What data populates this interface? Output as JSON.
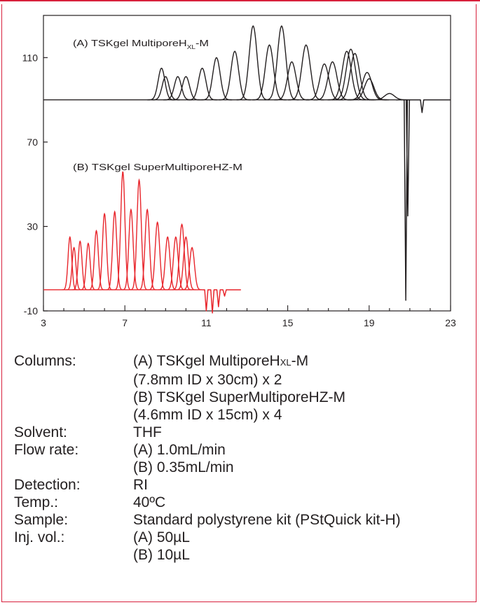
{
  "colors": {
    "frame": "#d8203c",
    "series_a": "#231f20",
    "series_b": "#e8262c",
    "text": "#231f20"
  },
  "chart_data": {
    "type": "line",
    "xlim": [
      3,
      23
    ],
    "ylim": [
      -10,
      130
    ],
    "x_ticks": [
      "3",
      "7",
      "11",
      "15",
      "19",
      "23"
    ],
    "y_ticks": [
      "110",
      "70",
      "30",
      "-10"
    ],
    "grid": false,
    "series": [
      {
        "name": "(A) TSKgel MultiporeHXL-M",
        "name_main": "(A) TSKgel MultiporeH",
        "name_sub": "XL",
        "name_tail": "-M",
        "color": "#231f20",
        "baseline": 90,
        "peaks": [
          {
            "x": 8.8,
            "y": 105
          },
          {
            "x": 9.0,
            "y": 101
          },
          {
            "x": 9.6,
            "y": 101
          },
          {
            "x": 10.0,
            "y": 101
          },
          {
            "x": 10.8,
            "y": 105
          },
          {
            "x": 11.5,
            "y": 110
          },
          {
            "x": 12.4,
            "y": 113
          },
          {
            "x": 13.3,
            "y": 125
          },
          {
            "x": 14.1,
            "y": 116
          },
          {
            "x": 14.7,
            "y": 125
          },
          {
            "x": 15.2,
            "y": 108
          },
          {
            "x": 15.9,
            "y": 116
          },
          {
            "x": 16.8,
            "y": 107
          },
          {
            "x": 17.2,
            "y": 108
          },
          {
            "x": 17.9,
            "y": 113
          },
          {
            "x": 18.1,
            "y": 114
          },
          {
            "x": 18.3,
            "y": 112
          },
          {
            "x": 18.9,
            "y": 103
          },
          {
            "x": 19.0,
            "y": 100
          },
          {
            "x": 20.0,
            "y": 93
          }
        ],
        "dips": [
          {
            "x": 20.8,
            "y": -5
          },
          {
            "x": 20.9,
            "y": 35
          },
          {
            "x": 21.6,
            "y": 84
          }
        ]
      },
      {
        "name": "(B) TSKgel SuperMultiporeHZ-M",
        "color": "#e8262c",
        "baseline": 0,
        "peaks": [
          {
            "x": 4.3,
            "y": 25
          },
          {
            "x": 4.5,
            "y": 20
          },
          {
            "x": 4.8,
            "y": 23
          },
          {
            "x": 5.2,
            "y": 22
          },
          {
            "x": 5.6,
            "y": 28
          },
          {
            "x": 6.0,
            "y": 36
          },
          {
            "x": 6.5,
            "y": 37
          },
          {
            "x": 6.9,
            "y": 56
          },
          {
            "x": 7.3,
            "y": 38
          },
          {
            "x": 7.7,
            "y": 52
          },
          {
            "x": 8.1,
            "y": 38
          },
          {
            "x": 8.6,
            "y": 32
          },
          {
            "x": 9.1,
            "y": 25
          },
          {
            "x": 9.5,
            "y": 25
          },
          {
            "x": 9.8,
            "y": 31
          },
          {
            "x": 10.0,
            "y": 25
          },
          {
            "x": 10.3,
            "y": 20
          }
        ],
        "dips": [
          {
            "x": 11.0,
            "y": -10
          },
          {
            "x": 11.3,
            "y": -11
          },
          {
            "x": 11.6,
            "y": -8
          },
          {
            "x": 11.9,
            "y": -3
          }
        ]
      }
    ]
  },
  "conditions": {
    "columns_label": "Columns:",
    "columns_a1_main": "(A) TSKgel MultiporeH",
    "columns_a1_sub": "XL",
    "columns_a1_tail": "-M",
    "columns_a2": "(7.8mm ID x 30cm) x 2",
    "columns_b1": "(B) TSKgel SuperMultiporeHZ-M",
    "columns_b2": "(4.6mm ID x 15cm) x 4",
    "solvent_label": "Solvent:",
    "solvent_value": "THF",
    "flow_label": "Flow rate:",
    "flow_a": "(A) 1.0mL/min",
    "flow_b": "(B) 0.35mL/min",
    "detection_label": "Detection:",
    "detection_value": "RI",
    "temp_label": "Temp.:",
    "temp_value": "40ºC",
    "sample_label": "Sample:",
    "sample_value": "Standard polystyrene kit (PStQuick kit-H)",
    "injvol_label": "Inj. vol.:",
    "injvol_a": "(A) 50µL",
    "injvol_b": "(B) 10µL"
  }
}
